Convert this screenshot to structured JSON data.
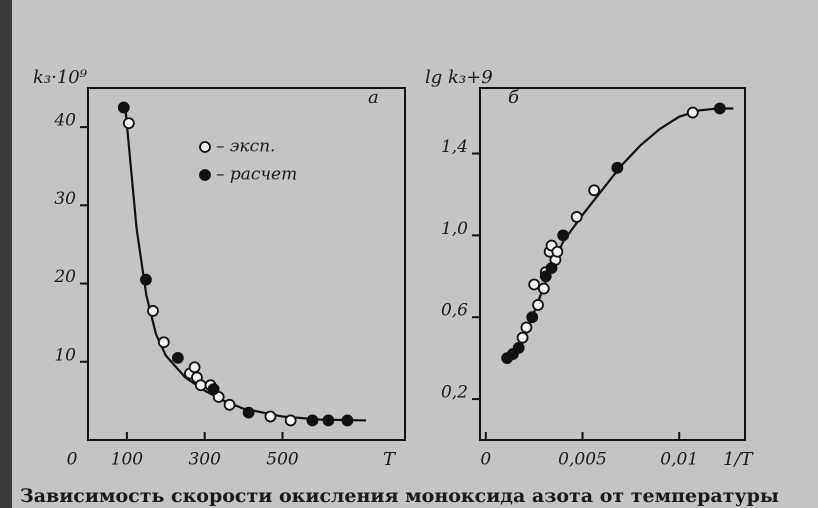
{
  "chart_data": [
    {
      "type": "scatter",
      "panel": "а",
      "ylabel": "k₃·10⁹",
      "xlabel": "T",
      "xlim": [
        0,
        815
      ],
      "ylim": [
        0,
        45
      ],
      "xticks": [
        0,
        100,
        300,
        500
      ],
      "yticks": [
        10,
        20,
        30,
        40
      ],
      "series": [
        {
          "color": "#111111",
          "marker": "line",
          "x": [
            95,
            110,
            125,
            150,
            175,
            200,
            250,
            300,
            350,
            400,
            500,
            600,
            715
          ],
          "values": [
            43,
            35,
            27,
            18.5,
            13.5,
            10.8,
            8,
            6.3,
            5,
            4,
            3,
            2.6,
            2.5
          ]
        },
        {
          "name": "– эксп.",
          "color": "#111111",
          "marker": "open",
          "x": [
            105,
            167,
            195,
            262,
            274,
            280,
            290,
            315,
            336,
            364,
            469,
            521
          ],
          "values": [
            40.5,
            16.5,
            12.5,
            8.5,
            9.3,
            8,
            7,
            7,
            5.5,
            4.5,
            3,
            2.5
          ]
        },
        {
          "name": "– расчет",
          "color": "#111111",
          "marker": "filled",
          "x": [
            92,
            149,
            231,
            323,
            413,
            577,
            618,
            667
          ],
          "values": [
            42.5,
            20.5,
            10.5,
            6.5,
            3.5,
            2.5,
            2.5,
            2.5
          ]
        }
      ]
    },
    {
      "type": "scatter",
      "panel": "б",
      "ylabel": "lg k₃+9",
      "xlabel": "1/T",
      "xlim": [
        -0.0003,
        0.0134
      ],
      "ylim": [
        0,
        1.72
      ],
      "xticks": [
        0,
        {
          "value": 0.005,
          "label": "0,005"
        },
        {
          "value": 0.01,
          "label": "0,01"
        }
      ],
      "yticks": [
        {
          "value": 0.2,
          "label": "0,2"
        },
        {
          "value": 0.6,
          "label": "0,6"
        },
        {
          "value": 1.0,
          "label": "1,0"
        },
        {
          "value": 1.4,
          "label": "1,4"
        }
      ],
      "series": [
        {
          "color": "#111111",
          "marker": "line",
          "x": [
            0.0011,
            0.002,
            0.003,
            0.004,
            0.005,
            0.006,
            0.007,
            0.008,
            0.009,
            0.01,
            0.011,
            0.012,
            0.0128
          ],
          "values": [
            0.39,
            0.5,
            0.75,
            0.97,
            1.1,
            1.22,
            1.34,
            1.44,
            1.52,
            1.58,
            1.61,
            1.62,
            1.62
          ]
        },
        {
          "color": "#111111",
          "marker": "open",
          "x": [
            0.0019,
            0.0021,
            0.0027,
            0.0025,
            0.003,
            0.0031,
            0.0036,
            0.0033,
            0.0034,
            0.0037,
            0.0047,
            0.0056,
            0.0107
          ],
          "values": [
            0.5,
            0.55,
            0.66,
            0.76,
            0.74,
            0.82,
            0.88,
            0.92,
            0.95,
            0.92,
            1.09,
            1.22,
            1.6
          ]
        },
        {
          "color": "#111111",
          "marker": "filled",
          "x": [
            0.0011,
            0.0014,
            0.0017,
            0.0024,
            0.0031,
            0.0034,
            0.004,
            0.0068,
            0.0121
          ],
          "values": [
            0.4,
            0.42,
            0.45,
            0.6,
            0.8,
            0.84,
            1.0,
            1.33,
            1.62
          ]
        }
      ]
    }
  ],
  "caption": "Зависимость скорости окисления моноксида азота от температуры"
}
